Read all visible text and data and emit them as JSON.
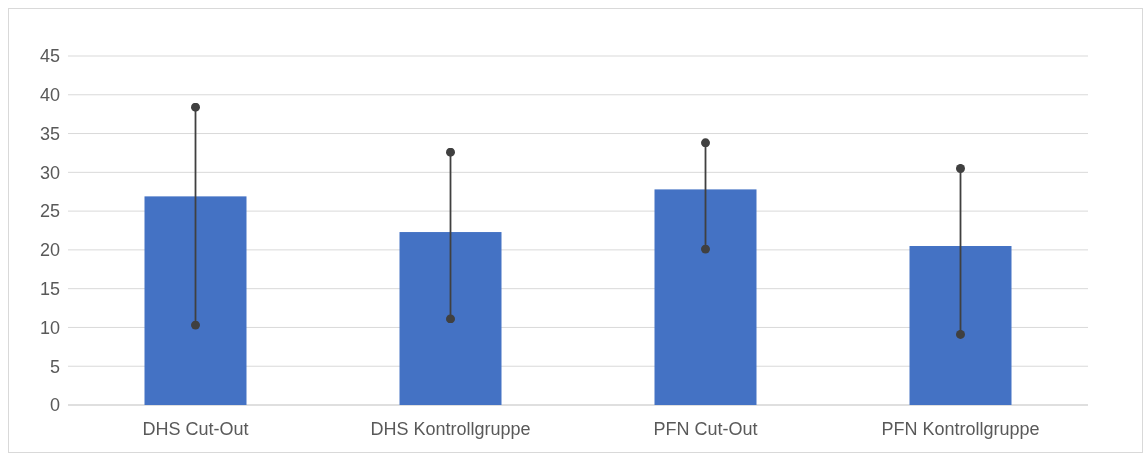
{
  "chart_data": {
    "type": "bar",
    "categories": [
      "DHS Cut-Out",
      "DHS Kontrollgruppe",
      "PFN Cut-Out",
      "PFN Kontrollgruppe"
    ],
    "values": [
      26.9,
      22.3,
      27.8,
      20.5
    ],
    "errors": [
      [
        10.3,
        38.4
      ],
      [
        11.1,
        32.6
      ],
      [
        20.1,
        33.8
      ],
      [
        9.1,
        30.5
      ]
    ],
    "color": "#4472c4",
    "ylim": [
      0,
      45
    ],
    "yticks": [
      0,
      5,
      10,
      15,
      20,
      25,
      30,
      35,
      40,
      45
    ],
    "grid": "y"
  }
}
